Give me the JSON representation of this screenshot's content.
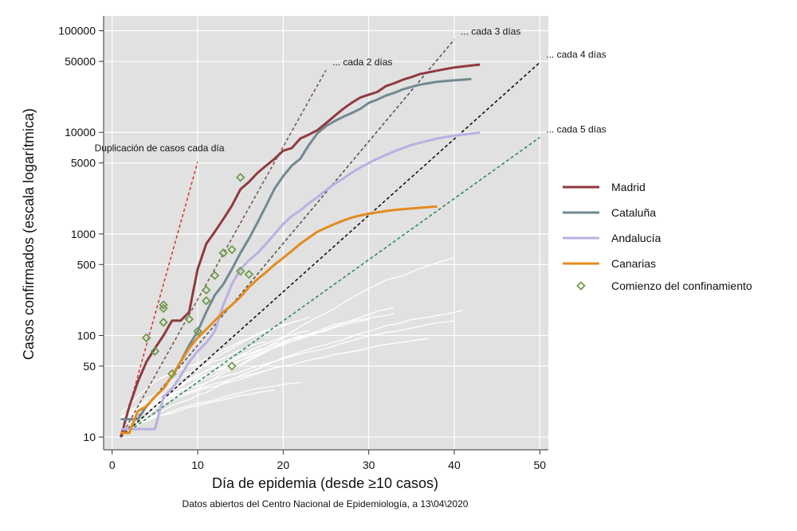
{
  "chart_data": {
    "type": "line",
    "title": "",
    "xlabel": "Día de epidemia (desde ≥10 casos)",
    "ylabel": "Casos confirmados (escala logarítmica)",
    "source_note": "Datos abiertos del Centro Nacional de Epidemiología, a 13\\04\\2020",
    "x_scale": "linear",
    "y_scale": "log",
    "xlim": [
      -1,
      51
    ],
    "ylim": [
      7.5,
      140000
    ],
    "x_ticks": [
      0,
      10,
      20,
      30,
      40,
      50
    ],
    "x_tick_labels": [
      "0",
      "10",
      "20",
      "30",
      "40",
      "50"
    ],
    "y_ticks": [
      10,
      50,
      100,
      500,
      1000,
      5000,
      10000,
      50000,
      100000
    ],
    "y_tick_labels": [
      "10",
      "50",
      "100",
      "500",
      "1000",
      "5000",
      "10000",
      "50000",
      "100000"
    ],
    "grid": true,
    "background": "#e1e1e1",
    "legend_position": "right",
    "colors": {
      "madrid": "#8f3a3f",
      "cataluna": "#718a90",
      "andalucia": "#b9b0e3",
      "canarias": "#e38b1e",
      "confinement": "#6f9a4e",
      "other_regions": "#ffffff"
    },
    "series": [
      {
        "name": "Madrid",
        "color": "#8f3a3f",
        "x": [
          1,
          2,
          3,
          4,
          5,
          6,
          7,
          8,
          9,
          10,
          11,
          12,
          13,
          14,
          15,
          16,
          17,
          18,
          19,
          20,
          21,
          22,
          23,
          24,
          25,
          26,
          27,
          28,
          29,
          30,
          31,
          32,
          33,
          34,
          35,
          36,
          37,
          38,
          39,
          40,
          41,
          42,
          43
        ],
        "y": [
          10,
          20,
          35,
          55,
          75,
          100,
          140,
          140,
          170,
          450,
          800,
          1050,
          1400,
          1900,
          2750,
          3250,
          4000,
          4700,
          5500,
          6600,
          7000,
          8700,
          9500,
          10500,
          12300,
          14500,
          17000,
          19500,
          22000,
          23500,
          25000,
          28500,
          30500,
          33000,
          35000,
          37500,
          39000,
          40500,
          42000,
          43500,
          44500,
          45500,
          46500
        ]
      },
      {
        "name": "Cataluña",
        "color": "#718a90",
        "x": [
          1,
          2,
          3,
          4,
          5,
          6,
          7,
          8,
          9,
          10,
          11,
          12,
          13,
          14,
          15,
          16,
          17,
          18,
          19,
          20,
          21,
          22,
          23,
          24,
          25,
          26,
          27,
          28,
          29,
          30,
          31,
          32,
          33,
          34,
          35,
          36,
          37,
          38,
          39,
          40,
          41,
          42
        ],
        "y": [
          15,
          15,
          15,
          20,
          25,
          30,
          40,
          55,
          80,
          110,
          170,
          250,
          320,
          450,
          650,
          900,
          1300,
          1900,
          2800,
          3700,
          4700,
          5500,
          7500,
          9800,
          11500,
          12900,
          14200,
          15500,
          17000,
          19500,
          21000,
          23000,
          24500,
          26500,
          28000,
          29500,
          30500,
          31500,
          32000,
          32500,
          33000,
          33500
        ]
      },
      {
        "name": "Andalucía",
        "color": "#b9b0e3",
        "x": [
          1,
          2,
          3,
          4,
          5,
          6,
          7,
          8,
          9,
          10,
          11,
          12,
          13,
          14,
          15,
          16,
          17,
          18,
          19,
          20,
          21,
          22,
          23,
          24,
          25,
          26,
          27,
          28,
          29,
          30,
          31,
          32,
          33,
          34,
          35,
          36,
          37,
          38,
          39,
          40,
          41,
          42,
          43
        ],
        "y": [
          12,
          12,
          12,
          12,
          12,
          25,
          30,
          40,
          55,
          70,
          85,
          110,
          200,
          320,
          450,
          550,
          650,
          800,
          1000,
          1250,
          1500,
          1700,
          2000,
          2300,
          2700,
          3100,
          3500,
          4000,
          4500,
          5000,
          5500,
          6000,
          6500,
          7000,
          7500,
          7900,
          8300,
          8700,
          9000,
          9300,
          9500,
          9700,
          9900
        ]
      },
      {
        "name": "Canarias",
        "color": "#e38b1e",
        "x": [
          1,
          2,
          3,
          4,
          5,
          6,
          7,
          8,
          9,
          10,
          11,
          12,
          13,
          14,
          15,
          16,
          17,
          18,
          19,
          20,
          21,
          22,
          23,
          24,
          25,
          26,
          27,
          28,
          29,
          30,
          31,
          32,
          33,
          34,
          35,
          36,
          37,
          38
        ],
        "y": [
          11,
          11,
          18,
          20,
          25,
          30,
          40,
          55,
          75,
          95,
          115,
          140,
          170,
          200,
          240,
          300,
          360,
          420,
          500,
          580,
          680,
          800,
          920,
          1050,
          1150,
          1250,
          1350,
          1450,
          1520,
          1580,
          1630,
          1680,
          1720,
          1750,
          1780,
          1810,
          1840,
          1860
        ]
      }
    ],
    "confinement_markers": [
      {
        "x": 4,
        "y": 95
      },
      {
        "x": 5,
        "y": 70
      },
      {
        "x": 6,
        "y": 200
      },
      {
        "x": 6,
        "y": 185
      },
      {
        "x": 6,
        "y": 135
      },
      {
        "x": 7,
        "y": 42
      },
      {
        "x": 9,
        "y": 145
      },
      {
        "x": 10,
        "y": 110
      },
      {
        "x": 11,
        "y": 280
      },
      {
        "x": 11,
        "y": 220
      },
      {
        "x": 12,
        "y": 390
      },
      {
        "x": 13,
        "y": 650
      },
      {
        "x": 14,
        "y": 700
      },
      {
        "x": 14,
        "y": 50
      },
      {
        "x": 15,
        "y": 3600
      },
      {
        "x": 15,
        "y": 430
      },
      {
        "x": 16,
        "y": 400
      }
    ],
    "reference_lines": [
      {
        "label": "Duplicación de casos cada día",
        "doubling_days": 1,
        "color": "#d93a3a",
        "x_end": 10
      },
      {
        "label": "... cada 2 días",
        "doubling_days": 2,
        "color": "#7d5a4a",
        "x_end": 25
      },
      {
        "label": "... cada 3 días",
        "doubling_days": 3,
        "color": "#555555",
        "x_end": 40
      },
      {
        "label": "... cada 4 días",
        "doubling_days": 4,
        "color": "#111111",
        "x_end": 50
      },
      {
        "label": "... cada 5 días",
        "doubling_days": 5,
        "color": "#2e8b57",
        "x_end": 50
      }
    ],
    "reference_start": {
      "x": 1,
      "y": 10
    },
    "legend": [
      "Madrid",
      "Cataluña",
      "Andalucía",
      "Canarias",
      "Comienzo del confinamiento"
    ]
  }
}
